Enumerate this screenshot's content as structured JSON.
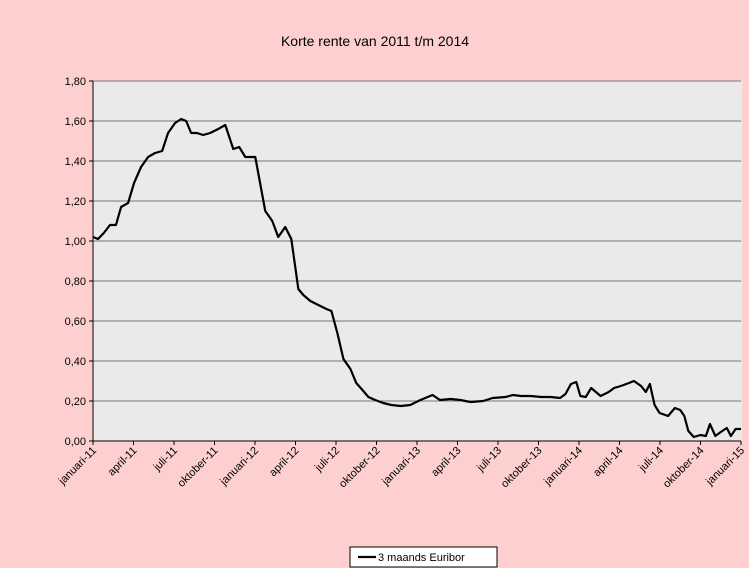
{
  "chart_data": {
    "type": "line",
    "title": "Korte rente van 2011 t/m 2014",
    "xlim": [
      0,
      48
    ],
    "xticks": [
      {
        "value": 0,
        "label": "januari-11"
      },
      {
        "value": 3,
        "label": "april-11"
      },
      {
        "value": 6,
        "label": "juli-11"
      },
      {
        "value": 9,
        "label": "oktober-11"
      },
      {
        "value": 12,
        "label": "januari-12"
      },
      {
        "value": 15,
        "label": "april-12"
      },
      {
        "value": 18,
        "label": "juli-12"
      },
      {
        "value": 21,
        "label": "oktober-12"
      },
      {
        "value": 24,
        "label": "januari-13"
      },
      {
        "value": 27,
        "label": "april-13"
      },
      {
        "value": 30,
        "label": "juli-13"
      },
      {
        "value": 33,
        "label": "oktober-13"
      },
      {
        "value": 36,
        "label": "januari-14"
      },
      {
        "value": 39,
        "label": "april-14"
      },
      {
        "value": 42,
        "label": "juli-14"
      },
      {
        "value": 45,
        "label": "oktober-14"
      },
      {
        "value": 48,
        "label": "januari-15"
      }
    ],
    "ylim": [
      0,
      1.8
    ],
    "yticks": [
      {
        "value": 0,
        "label": "0,00"
      },
      {
        "value": 0.2,
        "label": "0,20"
      },
      {
        "value": 0.4,
        "label": "0,40"
      },
      {
        "value": 0.6,
        "label": "0,60"
      },
      {
        "value": 0.8,
        "label": "0,80"
      },
      {
        "value": 1,
        "label": "1,00"
      },
      {
        "value": 1.2,
        "label": "1,20"
      },
      {
        "value": 1.4,
        "label": "1,40"
      },
      {
        "value": 1.6,
        "label": "1,60"
      },
      {
        "value": 1.8,
        "label": "1,80"
      }
    ],
    "grid": true,
    "legend": "bottom",
    "series": [
      {
        "name": "3 maands Euribor",
        "color": "#000000",
        "x": [
          0,
          0.37,
          0.8,
          1.26,
          1.7,
          2.08,
          2.6,
          3.04,
          3.56,
          4.08,
          4.6,
          5.12,
          5.56,
          6.08,
          6.53,
          6.9,
          7.27,
          7.7,
          8.16,
          8.68,
          9.27,
          9.8,
          10.39,
          10.83,
          11.28,
          12.02,
          12.76,
          13.28,
          13.72,
          14.24,
          14.69,
          15.21,
          15.58,
          16.1,
          16.69,
          17.29,
          17.66,
          18.1,
          18.55,
          19.07,
          19.5,
          19.96,
          20.4,
          20.9,
          21.5,
          22.1,
          22.8,
          23.5,
          24.25,
          25.15,
          25.7,
          26.5,
          27.2,
          27.97,
          28.9,
          29.6,
          30.56,
          31.1,
          31.7,
          32.4,
          33.2,
          33.9,
          34.6,
          35,
          35.4,
          35.8,
          36.1,
          36.5,
          36.9,
          37.6,
          38.2,
          38.6,
          39.1,
          39.7,
          40.07,
          40.6,
          40.95,
          41.25,
          41.6,
          41.97,
          42.6,
          43.1,
          43.5,
          43.8,
          44.1,
          44.5,
          45,
          45.4,
          45.7,
          46.1,
          46.5,
          46.95,
          47.25,
          47.6,
          48
        ],
        "values": [
          1.02,
          1.01,
          1.04,
          1.08,
          1.08,
          1.17,
          1.19,
          1.29,
          1.37,
          1.42,
          1.44,
          1.45,
          1.54,
          1.59,
          1.61,
          1.6,
          1.54,
          1.54,
          1.53,
          1.54,
          1.56,
          1.58,
          1.46,
          1.47,
          1.42,
          1.42,
          1.15,
          1.1,
          1.02,
          1.07,
          1.01,
          0.76,
          0.73,
          0.7,
          0.68,
          0.66,
          0.65,
          0.54,
          0.41,
          0.36,
          0.29,
          0.255,
          0.22,
          0.205,
          0.19,
          0.18,
          0.175,
          0.18,
          0.205,
          0.23,
          0.205,
          0.21,
          0.205,
          0.195,
          0.2,
          0.215,
          0.22,
          0.23,
          0.225,
          0.225,
          0.22,
          0.22,
          0.215,
          0.235,
          0.285,
          0.295,
          0.225,
          0.22,
          0.265,
          0.225,
          0.245,
          0.265,
          0.275,
          0.29,
          0.3,
          0.275,
          0.245,
          0.285,
          0.18,
          0.14,
          0.125,
          0.165,
          0.155,
          0.125,
          0.05,
          0.02,
          0.03,
          0.025,
          0.085,
          0.025,
          0.045,
          0.065,
          0.025,
          0.06,
          0.06
        ]
      }
    ]
  }
}
